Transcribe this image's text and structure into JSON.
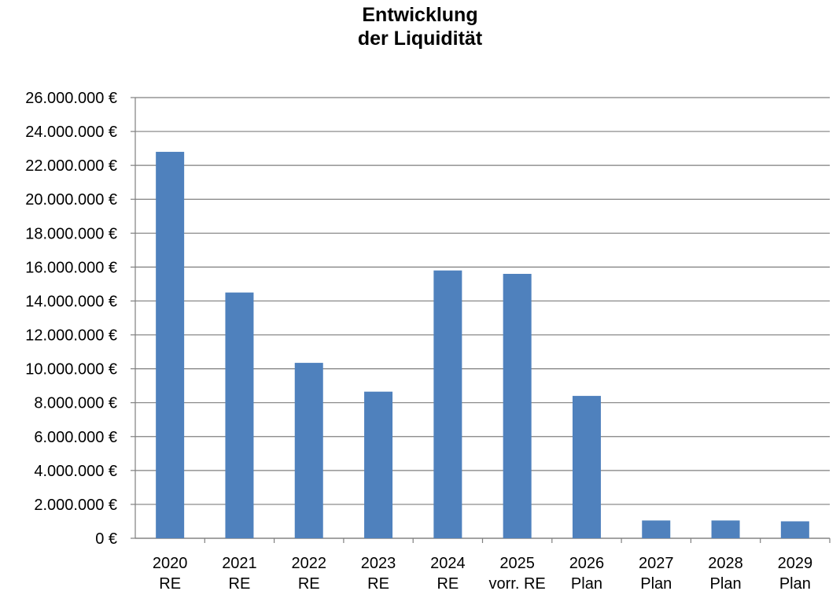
{
  "chart_data": {
    "type": "bar",
    "title_lines": [
      "Entwicklung",
      "der Liquidität"
    ],
    "categories": [
      [
        "2020",
        "RE"
      ],
      [
        "2021",
        "RE"
      ],
      [
        "2022",
        "RE"
      ],
      [
        "2023",
        "RE"
      ],
      [
        "2024",
        "RE"
      ],
      [
        "2025",
        "vorr. RE"
      ],
      [
        "2026",
        "Plan"
      ],
      [
        "2027",
        "Plan"
      ],
      [
        "2028",
        "Plan"
      ],
      [
        "2029",
        "Plan"
      ]
    ],
    "values": [
      22800000,
      14500000,
      10350000,
      8650000,
      15800000,
      15600000,
      8400000,
      1050000,
      1050000,
      1000000
    ],
    "ylim": [
      0,
      26000000
    ],
    "ytick_step": 2000000,
    "ytick_labels": [
      "0 €",
      "2.000.000 €",
      "4.000.000 €",
      "6.000.000 €",
      "8.000.000 €",
      "10.000.000 €",
      "12.000.000 €",
      "14.000.000 €",
      "16.000.000 €",
      "18.000.000 €",
      "20.000.000 €",
      "22.000.000 €",
      "24.000.000 €",
      "26.000.000 €"
    ],
    "grid": true,
    "bar_color": "#4f81bd",
    "legend": "none"
  }
}
